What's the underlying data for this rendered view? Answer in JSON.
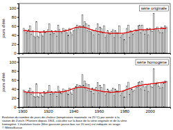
{
  "chart_data": [
    {
      "type": "bar",
      "ylabel": "jours d'été",
      "legend": "top-right",
      "grid": false,
      "tick_labels": "y",
      "xlim": [
        1897,
        2016
      ],
      "xticks": [
        1900,
        1920,
        1940,
        1960,
        1980,
        2000
      ],
      "ylim": [
        0,
        110
      ],
      "yticks": [
        0,
        20,
        40,
        60,
        80,
        100
      ],
      "x": [
        1901,
        1902,
        1903,
        1904,
        1905,
        1906,
        1907,
        1908,
        1909,
        1910,
        1911,
        1912,
        1913,
        1914,
        1915,
        1916,
        1917,
        1918,
        1919,
        1920,
        1921,
        1922,
        1923,
        1924,
        1925,
        1926,
        1927,
        1928,
        1929,
        1930,
        1931,
        1932,
        1933,
        1934,
        1935,
        1936,
        1937,
        1938,
        1939,
        1940,
        1941,
        1942,
        1943,
        1944,
        1945,
        1946,
        1947,
        1948,
        1949,
        1950,
        1951,
        1952,
        1953,
        1954,
        1955,
        1956,
        1957,
        1958,
        1959,
        1960,
        1961,
        1962,
        1963,
        1964,
        1965,
        1966,
        1967,
        1968,
        1969,
        1970,
        1971,
        1972,
        1973,
        1974,
        1975,
        1976,
        1977,
        1978,
        1979,
        1980,
        1981,
        1982,
        1983,
        1984,
        1985,
        1986,
        1987,
        1988,
        1989,
        1990,
        1991,
        1992,
        1993,
        1994,
        1995,
        1996,
        1997,
        1998,
        1999,
        2000,
        2001,
        2002,
        2003,
        2004,
        2005,
        2006,
        2007,
        2008,
        2009,
        2010,
        2011,
        2012,
        2013
      ],
      "series": [
        {
          "name": "série originale",
          "type": "bar",
          "color": "#000000",
          "values": [
            55,
            50,
            45,
            48,
            52,
            60,
            42,
            50,
            38,
            35,
            70,
            38,
            35,
            45,
            40,
            38,
            50,
            45,
            48,
            52,
            65,
            42,
            50,
            45,
            44,
            50,
            38,
            62,
            52,
            48,
            45,
            55,
            48,
            52,
            45,
            40,
            55,
            45,
            40,
            50,
            52,
            58,
            62,
            55,
            60,
            58,
            85,
            60,
            70,
            65,
            50,
            62,
            48,
            45,
            52,
            40,
            50,
            55,
            65,
            42,
            58,
            55,
            45,
            60,
            35,
            40,
            50,
            45,
            42,
            48,
            52,
            35,
            50,
            45,
            45,
            60,
            35,
            40,
            42,
            30,
            45,
            55,
            62,
            35,
            50,
            48,
            42,
            45,
            52,
            50,
            60,
            62,
            45,
            62,
            50,
            42,
            50,
            55,
            40,
            55,
            50,
            48,
            88,
            52,
            55,
            58,
            50,
            45,
            58,
            45,
            55,
            60,
            58
          ]
        },
        {
          "type": "line",
          "color": "#e00000",
          "values": [
            50,
            50,
            50,
            49,
            49,
            48,
            48,
            48,
            48,
            48,
            48,
            48,
            47,
            47,
            47,
            47,
            47,
            47,
            48,
            48,
            48,
            48,
            48,
            48,
            48,
            48,
            48,
            48,
            48,
            48,
            48,
            49,
            49,
            50,
            50,
            51,
            52,
            53,
            54,
            55,
            56,
            57,
            57,
            58,
            58,
            58,
            58,
            57,
            57,
            56,
            55,
            54,
            53,
            52,
            51,
            50,
            50,
            49,
            48,
            48,
            47,
            47,
            46,
            46,
            45,
            45,
            45,
            44,
            44,
            44,
            44,
            44,
            44,
            44,
            44,
            44,
            44,
            44,
            44,
            45,
            45,
            46,
            46,
            47,
            48,
            48,
            49,
            50,
            50,
            51,
            51,
            52,
            52,
            52,
            52,
            52,
            52,
            52,
            52,
            53,
            53,
            53,
            53,
            54,
            54,
            54,
            54,
            54,
            55,
            55,
            55,
            55,
            55
          ]
        }
      ]
    },
    {
      "type": "bar",
      "ylabel": "jours d'été",
      "legend": "top-right",
      "grid": false,
      "xlim": [
        1897,
        2016
      ],
      "xticks": [
        1900,
        1920,
        1940,
        1960,
        1980,
        2000
      ],
      "ylim": [
        0,
        110
      ],
      "yticks": [
        0,
        20,
        40,
        60,
        80,
        100
      ],
      "x": [
        1901,
        1902,
        1903,
        1904,
        1905,
        1906,
        1907,
        1908,
        1909,
        1910,
        1911,
        1912,
        1913,
        1914,
        1915,
        1916,
        1917,
        1918,
        1919,
        1920,
        1921,
        1922,
        1923,
        1924,
        1925,
        1926,
        1927,
        1928,
        1929,
        1930,
        1931,
        1932,
        1933,
        1934,
        1935,
        1936,
        1937,
        1938,
        1939,
        1940,
        1941,
        1942,
        1943,
        1944,
        1945,
        1946,
        1947,
        1948,
        1949,
        1950,
        1951,
        1952,
        1953,
        1954,
        1955,
        1956,
        1957,
        1958,
        1959,
        1960,
        1961,
        1962,
        1963,
        1964,
        1965,
        1966,
        1967,
        1968,
        1969,
        1970,
        1971,
        1972,
        1973,
        1974,
        1975,
        1976,
        1977,
        1978,
        1979,
        1980,
        1981,
        1982,
        1983,
        1984,
        1985,
        1986,
        1987,
        1988,
        1989,
        1990,
        1991,
        1992,
        1993,
        1994,
        1995,
        1996,
        1997,
        1998,
        1999,
        2000,
        2001,
        2002,
        2003,
        2004,
        2005,
        2006,
        2007,
        2008,
        2009,
        2010,
        2011,
        2012,
        2013
      ],
      "series": [
        {
          "name": "série homogène",
          "type": "bar",
          "color": "#000000",
          "values": [
            38,
            34,
            30,
            32,
            36,
            42,
            28,
            34,
            24,
            22,
            52,
            24,
            22,
            30,
            26,
            24,
            34,
            30,
            32,
            36,
            48,
            28,
            34,
            30,
            30,
            34,
            24,
            46,
            36,
            32,
            30,
            40,
            34,
            38,
            32,
            28,
            42,
            32,
            28,
            38,
            40,
            46,
            50,
            44,
            48,
            46,
            72,
            48,
            58,
            52,
            38,
            50,
            36,
            34,
            42,
            30,
            40,
            44,
            54,
            32,
            48,
            44,
            35,
            50,
            26,
            30,
            40,
            36,
            32,
            38,
            42,
            26,
            40,
            36,
            36,
            50,
            26,
            32,
            34,
            22,
            37,
            47,
            55,
            28,
            42,
            40,
            35,
            38,
            46,
            44,
            54,
            56,
            40,
            57,
            45,
            37,
            45,
            50,
            35,
            51,
            46,
            44,
            85,
            49,
            52,
            55,
            47,
            42,
            55,
            43,
            53,
            58,
            57
          ]
        },
        {
          "type": "line",
          "color": "#e00000",
          "values": [
            34,
            34,
            33,
            33,
            33,
            32,
            32,
            32,
            32,
            32,
            32,
            32,
            32,
            32,
            32,
            32,
            32,
            32,
            32,
            33,
            33,
            33,
            33,
            33,
            33,
            33,
            33,
            33,
            33,
            34,
            34,
            34,
            35,
            35,
            36,
            37,
            38,
            39,
            40,
            41,
            42,
            43,
            43,
            44,
            44,
            44,
            44,
            44,
            43,
            43,
            42,
            41,
            40,
            40,
            39,
            38,
            38,
            37,
            37,
            36,
            36,
            35,
            35,
            34,
            34,
            34,
            34,
            33,
            33,
            33,
            33,
            33,
            34,
            34,
            34,
            34,
            35,
            35,
            36,
            37,
            38,
            39,
            40,
            41,
            42,
            43,
            44,
            45,
            46,
            47,
            47,
            48,
            48,
            49,
            49,
            50,
            50,
            50,
            51,
            51,
            52,
            52,
            52,
            53,
            53,
            53,
            54,
            54,
            54,
            55,
            55,
            55,
            55
          ]
        }
      ]
    }
  ],
  "caption": [
    "Evolution du nombre de jours de chaleur (température maximale >= 25°C) par année à la",
    "station de Zurich / Fluntern depuis 1901, calculée sur la base de la série originale et de la série",
    "homogène. L'évolution lissée (filtre gaussien passe-bas sur 20 ans) est indiquée en rouge.",
    "© MétéoSuisse"
  ]
}
